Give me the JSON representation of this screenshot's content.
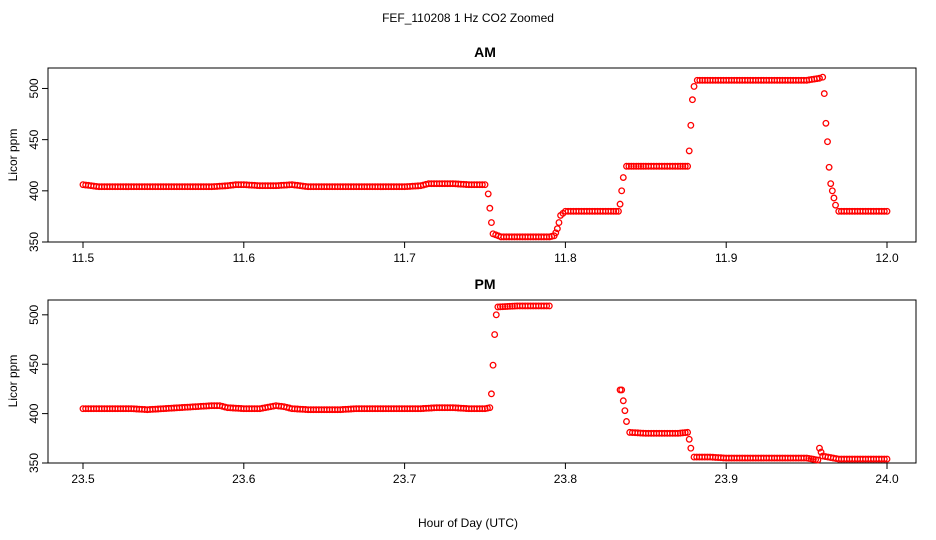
{
  "chart_data": {
    "type": "scatter",
    "title": "FEF_110208  1 Hz CO2 Zoomed",
    "xlabel": "Hour of Day (UTC)",
    "marker_color": "#ff0000",
    "marker": "open-circle",
    "grid": false,
    "panels": [
      {
        "title": "AM",
        "ylabel": "Licor ppm",
        "xlim": [
          11.5,
          12.0
        ],
        "ylim": [
          350,
          520
        ],
        "xticks": [
          11.5,
          11.6,
          11.7,
          11.8,
          11.9,
          12.0
        ],
        "xtick_labels": [
          "11.5",
          "11.6",
          "11.7",
          "11.8",
          "11.9",
          "12.0"
        ],
        "yticks": [
          350,
          400,
          450,
          500
        ],
        "ytick_labels": [
          "350",
          "400",
          "450",
          "500"
        ],
        "points": [
          [
            11.5,
            406
          ],
          [
            11.505,
            405
          ],
          [
            11.51,
            404
          ],
          [
            11.52,
            404
          ],
          [
            11.53,
            404
          ],
          [
            11.54,
            404
          ],
          [
            11.55,
            404
          ],
          [
            11.56,
            404
          ],
          [
            11.57,
            404
          ],
          [
            11.58,
            404
          ],
          [
            11.59,
            405
          ],
          [
            11.595,
            406
          ],
          [
            11.6,
            406
          ],
          [
            11.61,
            405
          ],
          [
            11.62,
            405
          ],
          [
            11.63,
            406
          ],
          [
            11.64,
            404
          ],
          [
            11.65,
            404
          ],
          [
            11.66,
            404
          ],
          [
            11.67,
            404
          ],
          [
            11.68,
            404
          ],
          [
            11.69,
            404
          ],
          [
            11.7,
            404
          ],
          [
            11.71,
            405
          ],
          [
            11.715,
            407
          ],
          [
            11.72,
            407
          ],
          [
            11.73,
            407
          ],
          [
            11.74,
            406
          ],
          [
            11.75,
            406
          ],
          [
            11.752,
            397
          ],
          [
            11.753,
            383
          ],
          [
            11.754,
            369
          ],
          [
            11.755,
            358
          ],
          [
            11.76,
            355
          ],
          [
            11.77,
            355
          ],
          [
            11.78,
            355
          ],
          [
            11.79,
            355
          ],
          [
            11.793,
            356
          ],
          [
            11.794,
            359
          ],
          [
            11.795,
            363
          ],
          [
            11.796,
            369
          ],
          [
            11.797,
            376
          ],
          [
            11.8,
            380
          ],
          [
            11.81,
            380
          ],
          [
            11.82,
            380
          ],
          [
            11.83,
            380
          ],
          [
            11.833,
            380
          ],
          [
            11.834,
            387
          ],
          [
            11.835,
            400
          ],
          [
            11.836,
            413
          ],
          [
            11.838,
            424
          ],
          [
            11.85,
            424
          ],
          [
            11.86,
            424
          ],
          [
            11.87,
            424
          ],
          [
            11.876,
            424
          ],
          [
            11.877,
            439
          ],
          [
            11.878,
            464
          ],
          [
            11.879,
            489
          ],
          [
            11.88,
            502
          ],
          [
            11.882,
            508
          ],
          [
            11.89,
            508
          ],
          [
            11.9,
            508
          ],
          [
            11.91,
            508
          ],
          [
            11.92,
            508
          ],
          [
            11.93,
            508
          ],
          [
            11.94,
            508
          ],
          [
            11.95,
            508
          ],
          [
            11.958,
            510
          ],
          [
            11.96,
            511
          ],
          [
            11.961,
            495
          ],
          [
            11.962,
            466
          ],
          [
            11.963,
            448
          ],
          [
            11.964,
            423
          ],
          [
            11.965,
            407
          ],
          [
            11.966,
            400
          ],
          [
            11.967,
            393
          ],
          [
            11.968,
            386
          ],
          [
            11.97,
            380
          ],
          [
            11.98,
            380
          ],
          [
            11.99,
            380
          ],
          [
            12.0,
            380
          ]
        ]
      },
      {
        "title": "PM",
        "ylabel": "Licor ppm",
        "xlim": [
          23.5,
          24.0
        ],
        "ylim": [
          350,
          515
        ],
        "xticks": [
          23.5,
          23.6,
          23.7,
          23.8,
          23.9,
          24.0
        ],
        "xtick_labels": [
          "23.5",
          "23.6",
          "23.7",
          "23.8",
          "23.9",
          "24.0"
        ],
        "yticks": [
          350,
          400,
          450,
          500
        ],
        "ytick_labels": [
          "350",
          "400",
          "450",
          "500"
        ],
        "points": [
          [
            23.5,
            405
          ],
          [
            23.51,
            405
          ],
          [
            23.52,
            405
          ],
          [
            23.53,
            405
          ],
          [
            23.54,
            404
          ],
          [
            23.55,
            405
          ],
          [
            23.56,
            406
          ],
          [
            23.57,
            407
          ],
          [
            23.58,
            408
          ],
          [
            23.585,
            408
          ],
          [
            23.59,
            406
          ],
          [
            23.6,
            405
          ],
          [
            23.61,
            405
          ],
          [
            23.62,
            408
          ],
          [
            23.625,
            407
          ],
          [
            23.63,
            405
          ],
          [
            23.64,
            404
          ],
          [
            23.65,
            404
          ],
          [
            23.66,
            404
          ],
          [
            23.67,
            405
          ],
          [
            23.68,
            405
          ],
          [
            23.69,
            405
          ],
          [
            23.7,
            405
          ],
          [
            23.71,
            405
          ],
          [
            23.72,
            406
          ],
          [
            23.73,
            406
          ],
          [
            23.74,
            405
          ],
          [
            23.75,
            405
          ],
          [
            23.753,
            406
          ],
          [
            23.754,
            420
          ],
          [
            23.755,
            449
          ],
          [
            23.756,
            480
          ],
          [
            23.757,
            500
          ],
          [
            23.758,
            508
          ],
          [
            23.77,
            509
          ],
          [
            23.78,
            509
          ],
          [
            23.79,
            509
          ],
          [
            23.834,
            424
          ],
          [
            23.835,
            424
          ],
          [
            23.836,
            413
          ],
          [
            23.837,
            403
          ],
          [
            23.838,
            392
          ],
          [
            23.84,
            381
          ],
          [
            23.85,
            380
          ],
          [
            23.86,
            380
          ],
          [
            23.87,
            380
          ],
          [
            23.876,
            381
          ],
          [
            23.877,
            374
          ],
          [
            23.878,
            365
          ],
          [
            23.88,
            356
          ],
          [
            23.89,
            356
          ],
          [
            23.9,
            355
          ],
          [
            23.91,
            355
          ],
          [
            23.92,
            355
          ],
          [
            23.93,
            355
          ],
          [
            23.94,
            355
          ],
          [
            23.95,
            355
          ],
          [
            23.957,
            353
          ],
          [
            23.958,
            365
          ],
          [
            23.959,
            361
          ],
          [
            23.96,
            357
          ],
          [
            23.97,
            354
          ],
          [
            23.98,
            354
          ],
          [
            23.99,
            354
          ],
          [
            24.0,
            354
          ]
        ]
      }
    ]
  }
}
